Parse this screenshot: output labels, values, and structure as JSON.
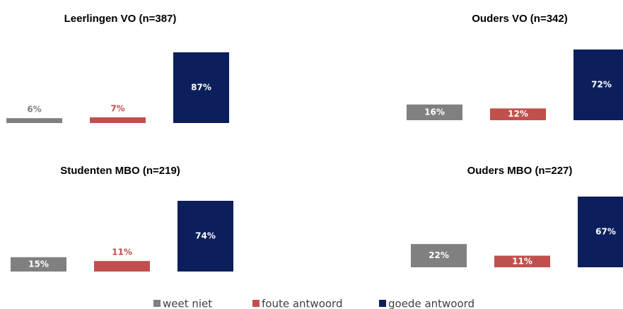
{
  "legend": [
    {
      "name": "weet niet",
      "color": "#808080"
    },
    {
      "name": "foute antwoord",
      "color": "#c0504d"
    },
    {
      "name": "goede antwoord",
      "color": "#0c1f5c"
    }
  ],
  "chart_data": [
    {
      "type": "bar",
      "title": "Leerlingen VO (n=387)",
      "values": [
        6,
        7,
        87
      ],
      "value_labels": [
        "6%",
        "7%",
        "87%"
      ]
    },
    {
      "type": "bar",
      "title": "Ouders VO (n=342)",
      "values": [
        16,
        12,
        72
      ],
      "value_labels": [
        "16%",
        "12%",
        "72%"
      ]
    },
    {
      "type": "bar",
      "title": "Studenten MBO (n=219)",
      "values": [
        15,
        11,
        74
      ],
      "value_labels": [
        "15%",
        "11%",
        "74%"
      ]
    },
    {
      "type": "bar",
      "title": "Ouders MBO (n=227)",
      "values": [
        22,
        11,
        67
      ],
      "value_labels": [
        "22%",
        "11%",
        "67%"
      ]
    }
  ]
}
